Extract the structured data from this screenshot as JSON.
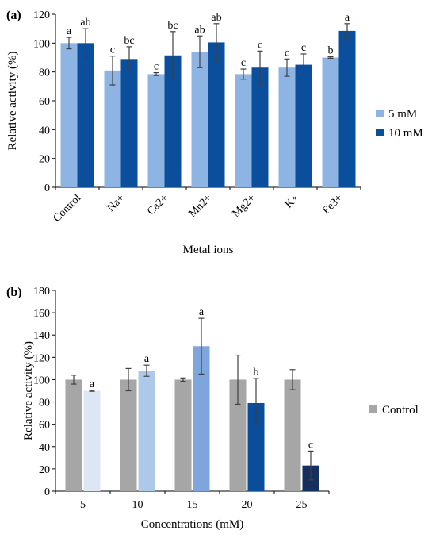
{
  "chart_data": [
    {
      "panel_label": "(a)",
      "type": "bar",
      "title": "",
      "xlabel": "Metal ions",
      "ylabel": "Relative activity (%)",
      "ylim": [
        0,
        120
      ],
      "yticks": [
        0,
        20,
        40,
        60,
        80,
        100,
        120
      ],
      "categories": [
        "Control",
        "Na+",
        "Ca2+",
        "Mn2+",
        "Mg2+",
        "K+",
        "Fe3+"
      ],
      "legend_position": "right",
      "grid": false,
      "series": [
        {
          "name": "5 mM",
          "color": "#8eb4e3",
          "values": [
            100,
            81,
            78.5,
            94,
            78.5,
            83,
            90
          ],
          "errors": [
            4,
            10,
            1,
            11,
            3.5,
            6,
            0.5
          ],
          "letters": [
            "a",
            "c",
            "c",
            "ab",
            "c",
            "c",
            "b"
          ]
        },
        {
          "name": "10 mM",
          "color": "#0b4f9c",
          "values": [
            100,
            89,
            91.5,
            100.5,
            83,
            85,
            108.5
          ],
          "errors": [
            10,
            8.5,
            16.5,
            13,
            11.5,
            7.5,
            5
          ],
          "letters": [
            "ab",
            "bc",
            "bc",
            "ab",
            "c",
            "c",
            "a"
          ]
        }
      ]
    },
    {
      "panel_label": "(b)",
      "type": "bar",
      "title": "",
      "xlabel": "Concentrations (mM)",
      "ylabel": "Relative activity (%)",
      "ylim": [
        0,
        180
      ],
      "yticks": [
        0,
        20,
        40,
        60,
        80,
        100,
        120,
        140,
        160,
        180
      ],
      "categories": [
        "5",
        "10",
        "15",
        "20",
        "25"
      ],
      "legend_position": "right",
      "grid": false,
      "series": [
        {
          "name": "Control",
          "color": "#a6a6a6",
          "values": [
            100,
            100,
            100,
            100,
            100
          ],
          "errors": [
            4,
            10,
            1.5,
            22,
            9
          ],
          "letters": [
            "",
            "",
            "",
            "",
            ""
          ]
        },
        {
          "name": "",
          "colors": [
            "#dce6f4",
            "#aec8ea",
            "#7ea6dc",
            "#0a4e9b",
            "#14305e"
          ],
          "values": [
            90,
            108,
            130,
            79,
            23
          ],
          "errors": [
            0.5,
            5,
            25,
            22,
            13
          ],
          "letters": [
            "a",
            "a",
            "a",
            "b",
            "c"
          ]
        }
      ]
    }
  ]
}
